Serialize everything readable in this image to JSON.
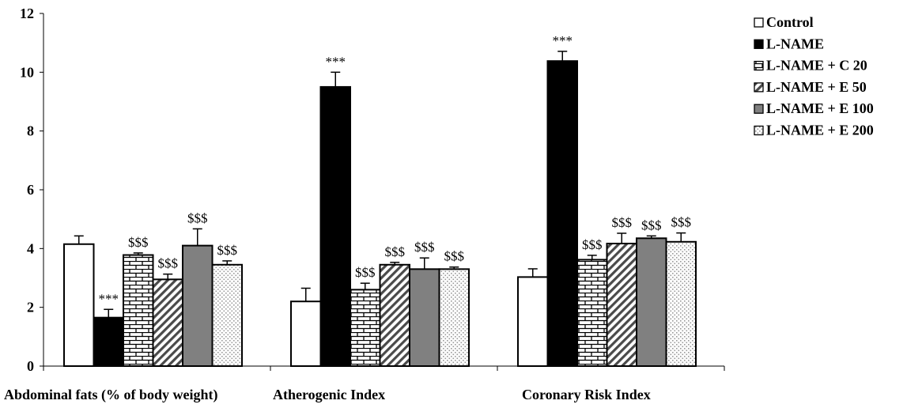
{
  "chart_data": {
    "type": "bar",
    "ylim": [
      0,
      12
    ],
    "yticks": [
      "0",
      "2",
      "4",
      "6",
      "8",
      "10",
      "12"
    ],
    "grid": false,
    "legend_position": "top-right",
    "categories": [
      "Abdominal fats (% of body weight)",
      "Atherogenic Index",
      "Coronary Risk Index"
    ],
    "series": [
      {
        "name": "Control",
        "pattern": "white",
        "values": [
          4.15,
          2.2,
          3.03
        ],
        "errors": [
          0.28,
          0.45,
          0.28
        ],
        "labels": [
          "",
          "",
          ""
        ]
      },
      {
        "name": "L-NAME",
        "pattern": "black",
        "values": [
          1.65,
          9.5,
          10.38
        ],
        "errors": [
          0.28,
          0.5,
          0.33
        ],
        "labels": [
          "***",
          "***",
          "***"
        ]
      },
      {
        "name": "L-NAME + C 20",
        "pattern": "brick",
        "values": [
          3.78,
          2.6,
          3.62
        ],
        "errors": [
          0.07,
          0.22,
          0.15
        ],
        "labels": [
          "$$$",
          "$$$",
          "$$$"
        ]
      },
      {
        "name": "L-NAME + E 50",
        "pattern": "diagonal",
        "values": [
          2.95,
          3.45,
          4.17
        ],
        "errors": [
          0.18,
          0.08,
          0.35
        ],
        "labels": [
          "$$$",
          "$$$",
          "$$$"
        ]
      },
      {
        "name": "L-NAME + E 100",
        "pattern": "gray",
        "values": [
          4.1,
          3.3,
          4.35
        ],
        "errors": [
          0.57,
          0.38,
          0.08
        ],
        "labels": [
          "$$$",
          "$$$",
          "$$$"
        ]
      },
      {
        "name": "L-NAME + E 200",
        "pattern": "dots",
        "values": [
          3.45,
          3.3,
          4.23
        ],
        "errors": [
          0.13,
          0.07,
          0.3
        ],
        "labels": [
          "$$$",
          "$$$",
          "$$$"
        ]
      }
    ],
    "colors": {
      "black": "#000000",
      "gray": "#808080",
      "white": "#ffffff",
      "dots": "#9a9a9a"
    }
  }
}
